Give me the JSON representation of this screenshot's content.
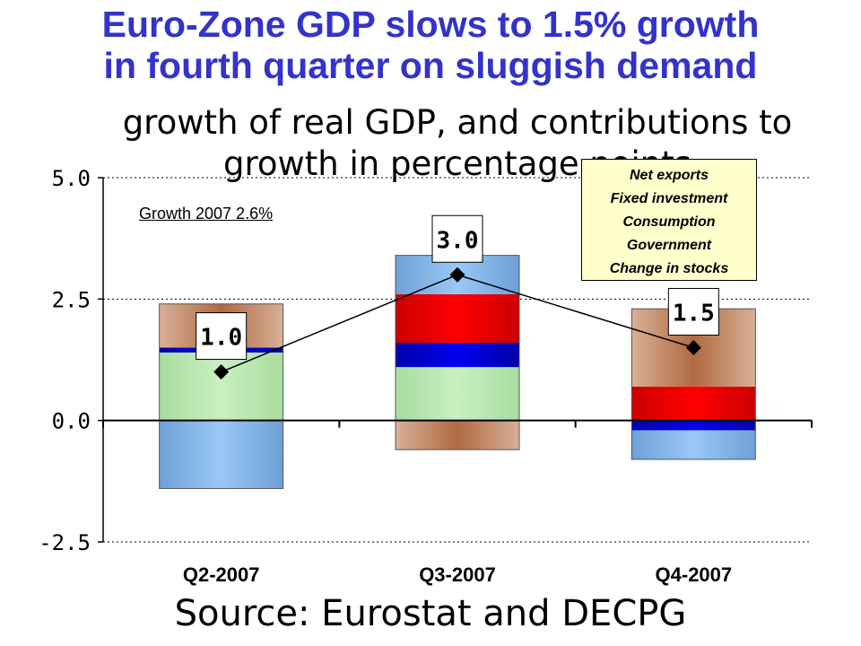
{
  "title_line1": "Euro-Zone GDP slows to 1.5% growth",
  "title_line2": "in fourth quarter on sluggish demand",
  "subtitle": "growth of real GDP, and contributions to growth in percentage points",
  "source": "Source: Eurostat and DECPG",
  "annotation": "Growth 2007 2.6%",
  "legend": [
    "Net exports",
    "Fixed investment",
    "Consumption",
    "Government",
    "Change in stocks"
  ],
  "colors": {
    "title": "#3333cc",
    "net_exports": "#99c8f5",
    "fixed_investment": "#ff0000",
    "consumption": "#0000ee",
    "government": "#c8f0c0",
    "change_in_stocks": "#b06a40",
    "legend_bg": "#ffffcc"
  },
  "chart_data": {
    "type": "bar",
    "stacked": true,
    "categories": [
      "Q2-2007",
      "Q3-2007",
      "Q4-2007"
    ],
    "ylim": [
      -2.5,
      5.0
    ],
    "yticks": [
      "5.0",
      "2.5",
      "0.0",
      "-2.5"
    ],
    "ytick_values": [
      5.0,
      2.5,
      0.0,
      -2.5
    ],
    "grid": true,
    "series": [
      {
        "name": "Government",
        "key": "government",
        "values": [
          1.4,
          1.1,
          0.0
        ]
      },
      {
        "name": "Consumption",
        "key": "consumption",
        "values": [
          0.1,
          0.5,
          -0.2
        ]
      },
      {
        "name": "Fixed investment",
        "key": "fixed_investment",
        "values": [
          0.0,
          1.0,
          0.7
        ]
      },
      {
        "name": "Change in stocks",
        "key": "change_in_stocks",
        "values": [
          0.9,
          0.0,
          1.6
        ]
      },
      {
        "name": "Net exports",
        "key": "net_exports",
        "values": [
          -1.4,
          0.8,
          -0.6
        ]
      }
    ],
    "negative_extra": [
      {
        "key": "change_in_stocks",
        "values": [
          0.0,
          -0.6,
          0.0
        ]
      }
    ],
    "line": {
      "name": "GDP growth",
      "values": [
        1.0,
        3.0,
        1.5
      ]
    },
    "data_labels": [
      "1.0",
      "3.0",
      "1.5"
    ]
  }
}
